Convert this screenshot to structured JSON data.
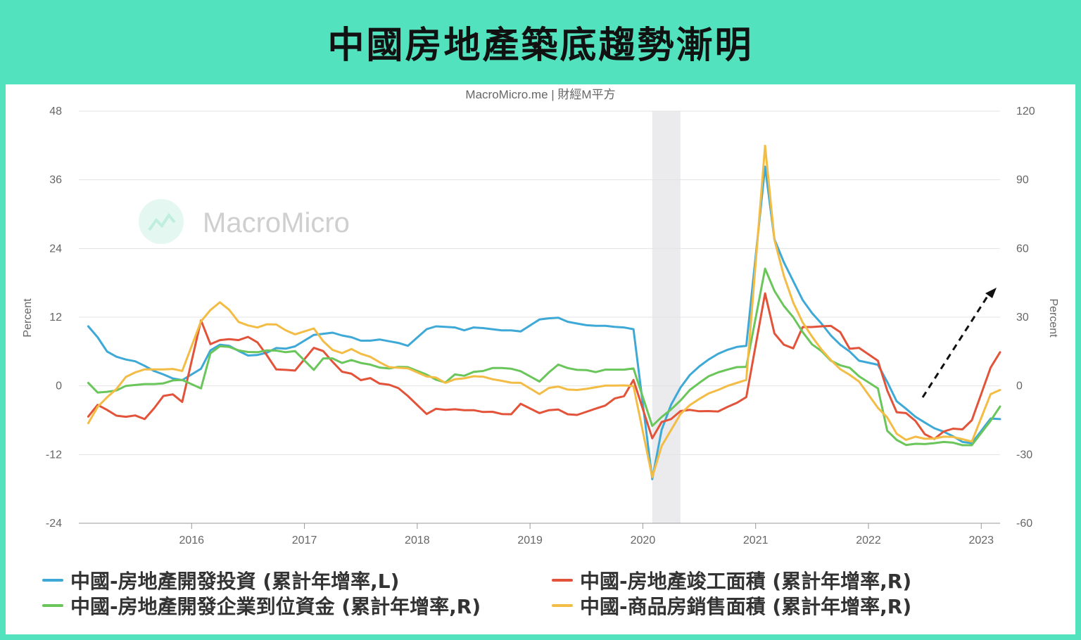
{
  "header": {
    "title": "中國房地產築底趨勢漸明"
  },
  "source": "MacroMicro.me | 財經M平方",
  "watermark": "MacroMicro",
  "colors": {
    "background": "#52e3be",
    "blue": "#3ea9d6",
    "red": "#e2533a",
    "green": "#6ac65a",
    "yellow": "#f2bc45",
    "recession": "#ebebee"
  },
  "chart_data": {
    "type": "line",
    "title": "",
    "y_left": {
      "label": "Percent",
      "ylim": [
        -24,
        48
      ],
      "ticks": [
        "48",
        "36",
        "24",
        "12",
        "0",
        "-12",
        "-24"
      ]
    },
    "y_right": {
      "label": "Percent",
      "ylim": [
        -60,
        120
      ],
      "ticks": [
        "120",
        "90",
        "60",
        "30",
        "0",
        "-30",
        "-60"
      ]
    },
    "x_ticks": [
      "2016",
      "2017",
      "2018",
      "2019",
      "2020",
      "2021",
      "2022",
      "2023"
    ],
    "x_range": [
      "2015-01",
      "2023-03"
    ],
    "grid": true,
    "recession_shade": {
      "from": "2020-02",
      "to": "2020-04"
    },
    "series": [
      {
        "name": "中國-房地產開發投資 (累計年增率,L)",
        "axis": "left",
        "color_key": "blue",
        "x": [
          "2015-02",
          "2015-03",
          "2015-04",
          "2015-05",
          "2015-06",
          "2015-07",
          "2015-08",
          "2015-09",
          "2015-10",
          "2015-11",
          "2015-12",
          "2016-02",
          "2016-03",
          "2016-04",
          "2016-05",
          "2016-06",
          "2016-07",
          "2016-08",
          "2016-09",
          "2016-10",
          "2016-11",
          "2016-12",
          "2017-02",
          "2017-03",
          "2017-04",
          "2017-05",
          "2017-06",
          "2017-07",
          "2017-08",
          "2017-09",
          "2017-10",
          "2017-11",
          "2017-12",
          "2018-02",
          "2018-03",
          "2018-04",
          "2018-05",
          "2018-06",
          "2018-07",
          "2018-08",
          "2018-09",
          "2018-10",
          "2018-11",
          "2018-12",
          "2019-02",
          "2019-03",
          "2019-04",
          "2019-05",
          "2019-06",
          "2019-07",
          "2019-08",
          "2019-09",
          "2019-10",
          "2019-11",
          "2019-12",
          "2020-02",
          "2020-03",
          "2020-04",
          "2020-05",
          "2020-06",
          "2020-07",
          "2020-08",
          "2020-09",
          "2020-10",
          "2020-11",
          "2020-12",
          "2021-02",
          "2021-03",
          "2021-04",
          "2021-05",
          "2021-06",
          "2021-07",
          "2021-08",
          "2021-09",
          "2021-10",
          "2021-11",
          "2021-12",
          "2022-02",
          "2022-03",
          "2022-04",
          "2022-05",
          "2022-06",
          "2022-07",
          "2022-08",
          "2022-09",
          "2022-10",
          "2022-11",
          "2022-12",
          "2023-02",
          "2023-03"
        ],
        "y": [
          10.4,
          8.5,
          6.0,
          5.1,
          4.6,
          4.3,
          3.5,
          2.6,
          2.0,
          1.3,
          1.0,
          3.0,
          6.2,
          7.2,
          7.0,
          6.1,
          5.3,
          5.4,
          5.8,
          6.6,
          6.5,
          6.9,
          8.9,
          9.1,
          9.3,
          8.8,
          8.5,
          7.9,
          7.9,
          8.1,
          7.8,
          7.5,
          7.0,
          9.9,
          10.4,
          10.3,
          10.2,
          9.7,
          10.2,
          10.1,
          9.9,
          9.7,
          9.7,
          9.5,
          11.6,
          11.8,
          11.9,
          11.2,
          10.9,
          10.6,
          10.5,
          10.5,
          10.3,
          10.2,
          9.9,
          -16.3,
          -7.7,
          -3.3,
          -0.3,
          1.9,
          3.4,
          4.6,
          5.6,
          6.3,
          6.8,
          7.0,
          38.3,
          25.6,
          21.6,
          18.3,
          15.0,
          12.7,
          10.9,
          8.8,
          7.2,
          6.0,
          4.4,
          3.7,
          0.7,
          -2.7,
          -4.0,
          -5.4,
          -6.4,
          -7.4,
          -8.0,
          -8.8,
          -9.8,
          -10.0,
          -5.7,
          -5.8
        ]
      },
      {
        "name": "中國-房地產竣工面積 (累計年增率,R)",
        "axis": "right",
        "color_key": "red",
        "x": [
          "2015-02",
          "2015-03",
          "2015-04",
          "2015-05",
          "2015-06",
          "2015-07",
          "2015-08",
          "2015-09",
          "2015-10",
          "2015-11",
          "2015-12",
          "2016-02",
          "2016-03",
          "2016-04",
          "2016-05",
          "2016-06",
          "2016-07",
          "2016-08",
          "2016-09",
          "2016-10",
          "2016-11",
          "2016-12",
          "2017-02",
          "2017-03",
          "2017-04",
          "2017-05",
          "2017-06",
          "2017-07",
          "2017-08",
          "2017-09",
          "2017-10",
          "2017-11",
          "2017-12",
          "2018-02",
          "2018-03",
          "2018-04",
          "2018-05",
          "2018-06",
          "2018-07",
          "2018-08",
          "2018-09",
          "2018-10",
          "2018-11",
          "2018-12",
          "2019-02",
          "2019-03",
          "2019-04",
          "2019-05",
          "2019-06",
          "2019-07",
          "2019-08",
          "2019-09",
          "2019-10",
          "2019-11",
          "2019-12",
          "2020-02",
          "2020-03",
          "2020-04",
          "2020-05",
          "2020-06",
          "2020-07",
          "2020-08",
          "2020-09",
          "2020-10",
          "2020-11",
          "2020-12",
          "2021-02",
          "2021-03",
          "2021-04",
          "2021-05",
          "2021-06",
          "2021-07",
          "2021-08",
          "2021-09",
          "2021-10",
          "2021-11",
          "2021-12",
          "2022-02",
          "2022-03",
          "2022-04",
          "2022-05",
          "2022-06",
          "2022-07",
          "2022-08",
          "2022-09",
          "2022-10",
          "2022-11",
          "2022-12",
          "2023-02",
          "2023-03"
        ],
        "y": [
          -13.4,
          -8.3,
          -10.5,
          -13.0,
          -13.5,
          -12.9,
          -14.5,
          -9.8,
          -4.4,
          -3.7,
          -7.0,
          28.6,
          18.2,
          20.0,
          20.4,
          20.0,
          21.4,
          19.0,
          13.4,
          7.2,
          7.0,
          6.7,
          16.6,
          15.2,
          10.5,
          6.2,
          5.3,
          2.5,
          3.4,
          1.0,
          0.5,
          -1.0,
          -4.4,
          -12.3,
          -10.0,
          -10.5,
          -10.2,
          -10.6,
          -10.6,
          -11.4,
          -11.3,
          -12.3,
          -12.4,
          -7.8,
          -11.9,
          -10.6,
          -10.3,
          -12.4,
          -12.7,
          -11.3,
          -9.9,
          -8.6,
          -5.5,
          -4.5,
          2.6,
          -22.9,
          -15.8,
          -14.5,
          -11.0,
          -10.5,
          -11.1,
          -11.0,
          -11.2,
          -9.2,
          -7.4,
          -4.9,
          40.4,
          22.9,
          18.0,
          16.4,
          25.7,
          25.7,
          26.0,
          26.2,
          23.5,
          16.2,
          16.6,
          11.0,
          -2.0,
          -11.5,
          -11.9,
          -15.3,
          -21.1,
          -23.2,
          -19.9,
          -18.7,
          -19.0,
          -15.0,
          8.0,
          14.7
        ]
      },
      {
        "name": "中國-房地產開發企業到位資金 (累計年增率,R)",
        "axis": "right",
        "color_key": "green",
        "x": [
          "2015-02",
          "2015-03",
          "2015-04",
          "2015-05",
          "2015-06",
          "2015-07",
          "2015-08",
          "2015-09",
          "2015-10",
          "2015-11",
          "2015-12",
          "2016-02",
          "2016-03",
          "2016-04",
          "2016-05",
          "2016-06",
          "2016-07",
          "2016-08",
          "2016-09",
          "2016-10",
          "2016-11",
          "2016-12",
          "2017-02",
          "2017-03",
          "2017-04",
          "2017-05",
          "2017-06",
          "2017-07",
          "2017-08",
          "2017-09",
          "2017-10",
          "2017-11",
          "2017-12",
          "2018-02",
          "2018-03",
          "2018-04",
          "2018-05",
          "2018-06",
          "2018-07",
          "2018-08",
          "2018-09",
          "2018-10",
          "2018-11",
          "2018-12",
          "2019-02",
          "2019-03",
          "2019-04",
          "2019-05",
          "2019-06",
          "2019-07",
          "2019-08",
          "2019-09",
          "2019-10",
          "2019-11",
          "2019-12",
          "2020-02",
          "2020-03",
          "2020-04",
          "2020-05",
          "2020-06",
          "2020-07",
          "2020-08",
          "2020-09",
          "2020-10",
          "2020-11",
          "2020-12",
          "2021-02",
          "2021-03",
          "2021-04",
          "2021-05",
          "2021-06",
          "2021-07",
          "2021-08",
          "2021-09",
          "2021-10",
          "2021-11",
          "2021-12",
          "2022-02",
          "2022-03",
          "2022-04",
          "2022-05",
          "2022-06",
          "2022-07",
          "2022-08",
          "2022-09",
          "2022-10",
          "2022-11",
          "2022-12",
          "2023-02",
          "2023-03"
        ],
        "y": [
          1.3,
          -2.9,
          -2.6,
          -2.0,
          0.0,
          0.4,
          0.8,
          0.8,
          1.1,
          2.4,
          2.6,
          -1.1,
          14.2,
          17.3,
          17.0,
          15.5,
          14.8,
          14.7,
          15.5,
          15.4,
          14.7,
          15.2,
          7.0,
          12.0,
          12.0,
          10.0,
          11.3,
          10.0,
          9.3,
          8.0,
          7.6,
          8.3,
          8.2,
          4.9,
          2.7,
          1.5,
          5.0,
          4.4,
          6.1,
          6.5,
          7.8,
          7.8,
          7.5,
          6.4,
          1.9,
          5.9,
          9.3,
          7.8,
          7.0,
          6.9,
          6.0,
          7.1,
          7.1,
          7.1,
          7.6,
          -17.5,
          -13.6,
          -10.3,
          -6.4,
          -1.8,
          1.3,
          4.2,
          5.9,
          7.1,
          8.2,
          8.3,
          51.2,
          41.5,
          34.9,
          30.0,
          23.5,
          18.1,
          15.2,
          11.0,
          9.0,
          7.9,
          4.2,
          -1.1,
          -19.6,
          -23.6,
          -25.8,
          -25.3,
          -25.4,
          -25.0,
          -24.5,
          -24.8,
          -25.9,
          -25.9,
          -15.2,
          -9.0
        ]
      },
      {
        "name": "中國-商品房銷售面積 (累計年增率,R)",
        "axis": "right",
        "color_key": "yellow",
        "x": [
          "2015-02",
          "2015-03",
          "2015-04",
          "2015-05",
          "2015-06",
          "2015-07",
          "2015-08",
          "2015-09",
          "2015-10",
          "2015-11",
          "2015-12",
          "2016-02",
          "2016-03",
          "2016-04",
          "2016-05",
          "2016-06",
          "2016-07",
          "2016-08",
          "2016-09",
          "2016-10",
          "2016-11",
          "2016-12",
          "2017-02",
          "2017-03",
          "2017-04",
          "2017-05",
          "2017-06",
          "2017-07",
          "2017-08",
          "2017-09",
          "2017-10",
          "2017-11",
          "2017-12",
          "2018-02",
          "2018-03",
          "2018-04",
          "2018-05",
          "2018-06",
          "2018-07",
          "2018-08",
          "2018-09",
          "2018-10",
          "2018-11",
          "2018-12",
          "2019-02",
          "2019-03",
          "2019-04",
          "2019-05",
          "2019-06",
          "2019-07",
          "2019-08",
          "2019-09",
          "2019-10",
          "2019-11",
          "2019-12",
          "2020-02",
          "2020-03",
          "2020-04",
          "2020-05",
          "2020-06",
          "2020-07",
          "2020-08",
          "2020-09",
          "2020-10",
          "2020-11",
          "2020-12",
          "2021-02",
          "2021-03",
          "2021-04",
          "2021-05",
          "2021-06",
          "2021-07",
          "2021-08",
          "2021-09",
          "2021-10",
          "2021-11",
          "2021-12",
          "2022-02",
          "2022-03",
          "2022-04",
          "2022-05",
          "2022-06",
          "2022-07",
          "2022-08",
          "2022-09",
          "2022-10",
          "2022-11",
          "2022-12",
          "2023-02",
          "2023-03"
        ],
        "y": [
          -16.3,
          -9.2,
          -5.0,
          -1.4,
          3.9,
          5.9,
          7.2,
          7.2,
          7.2,
          7.4,
          6.5,
          28.2,
          33.1,
          36.5,
          33.2,
          27.9,
          26.4,
          25.5,
          26.9,
          26.8,
          24.3,
          22.5,
          25.1,
          19.5,
          15.7,
          14.3,
          16.1,
          14.0,
          12.7,
          10.3,
          8.2,
          7.9,
          7.7,
          4.1,
          3.6,
          1.3,
          2.9,
          3.3,
          4.2,
          4.0,
          2.9,
          2.2,
          1.4,
          1.3,
          -3.6,
          -0.9,
          -0.3,
          -1.6,
          -1.8,
          -1.3,
          -0.6,
          0.1,
          0.1,
          0.2,
          -0.1,
          -39.9,
          -26.3,
          -19.3,
          -12.3,
          -8.4,
          -5.7,
          -3.3,
          -1.8,
          0.0,
          1.3,
          2.6,
          104.9,
          63.8,
          48.1,
          36.4,
          27.7,
          21.5,
          15.9,
          11.3,
          7.3,
          4.8,
          1.9,
          -9.6,
          -13.8,
          -20.9,
          -23.6,
          -22.2,
          -23.1,
          -23.0,
          -22.2,
          -22.3,
          -23.3,
          -24.3,
          -3.6,
          -1.8
        ]
      }
    ],
    "annotation": {
      "type": "trend-arrow",
      "direction": "up",
      "style": "dashed"
    }
  },
  "legend": [
    {
      "label": "中國-房地產開發投資 (累計年增率,L)",
      "color_key": "blue"
    },
    {
      "label": "中國-房地產竣工面積 (累計年增率,R)",
      "color_key": "red"
    },
    {
      "label": "中國-房地產開發企業到位資金 (累計年增率,R)",
      "color_key": "green"
    },
    {
      "label": "中國-商品房銷售面積 (累計年增率,R)",
      "color_key": "yellow"
    }
  ]
}
